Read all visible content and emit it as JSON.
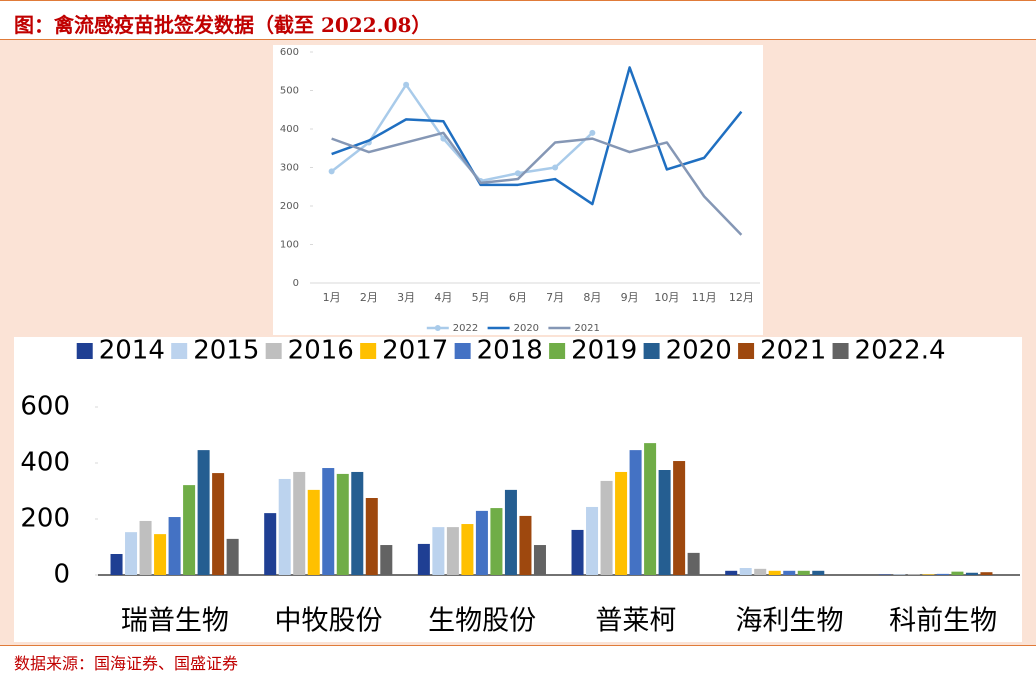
{
  "title": "图：禽流感疫苗批签发数据（截至 2022.08）",
  "source": "数据来源：国海证券、国盛证券",
  "chart_data": [
    {
      "type": "line",
      "categories": [
        "1月",
        "2月",
        "3月",
        "4月",
        "5月",
        "6月",
        "7月",
        "8月",
        "9月",
        "10月",
        "11月",
        "12月"
      ],
      "series": [
        {
          "name": "2022",
          "color": "#a9cbea",
          "values": [
            290,
            365,
            515,
            375,
            265,
            285,
            300,
            390,
            null,
            null,
            null,
            null
          ]
        },
        {
          "name": "2020",
          "color": "#1f6fc1",
          "values": [
            335,
            370,
            425,
            420,
            255,
            255,
            270,
            205,
            560,
            295,
            325,
            445
          ]
        },
        {
          "name": "2021",
          "color": "#8597b5",
          "values": [
            375,
            340,
            365,
            390,
            260,
            270,
            365,
            375,
            340,
            365,
            225,
            125
          ]
        }
      ],
      "ylim": [
        0,
        600
      ],
      "yticks": [
        0,
        100,
        200,
        300,
        400,
        500,
        600
      ]
    },
    {
      "type": "bar",
      "categories": [
        "瑞普生物",
        "中牧股份",
        "生物股份",
        "普莱柯",
        "海利生物",
        "科前生物"
      ],
      "series": [
        {
          "name": "2014",
          "color": "#1f3f93",
          "values": [
            75,
            221,
            111,
            161,
            15,
            2
          ]
        },
        {
          "name": "2015",
          "color": "#bcd3ee",
          "values": [
            153,
            343,
            171,
            243,
            25,
            2
          ]
        },
        {
          "name": "2016",
          "color": "#bfbfbf",
          "values": [
            193,
            368,
            171,
            336,
            22,
            2
          ]
        },
        {
          "name": "2017",
          "color": "#ffc000",
          "values": [
            146,
            304,
            182,
            368,
            15,
            2
          ]
        },
        {
          "name": "2018",
          "color": "#4472c4",
          "values": [
            207,
            382,
            229,
            446,
            15,
            4
          ]
        },
        {
          "name": "2019",
          "color": "#70ad47",
          "values": [
            321,
            361,
            239,
            471,
            15,
            12
          ]
        },
        {
          "name": "2020",
          "color": "#255e91",
          "values": [
            446,
            368,
            304,
            375,
            15,
            8
          ]
        },
        {
          "name": "2021",
          "color": "#9e480e",
          "values": [
            364,
            275,
            211,
            407,
            null,
            10
          ]
        },
        {
          "name": "2022.4",
          "color": "#636363",
          "values": [
            129,
            107,
            107,
            79,
            null,
            null
          ]
        }
      ],
      "ylim": [
        0,
        600
      ],
      "yticks": [
        0,
        200,
        400,
        600
      ]
    }
  ]
}
